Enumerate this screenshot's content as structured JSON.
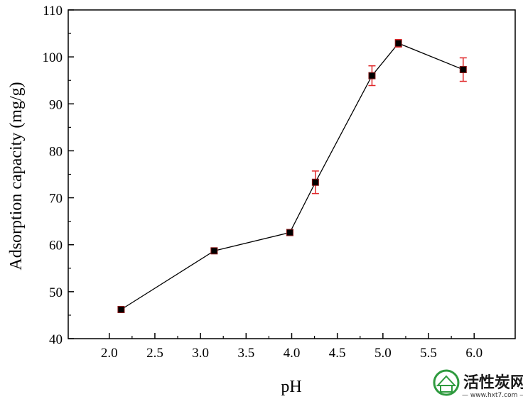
{
  "chart_data": {
    "type": "scatter",
    "xlabel": "pH",
    "ylabel": "Adsorption capacity (mg/g)",
    "xlim": [
      1.55,
      6.45
    ],
    "ylim": [
      40,
      110
    ],
    "x_ticks": [
      2.0,
      2.5,
      3.0,
      3.5,
      4.0,
      4.5,
      5.0,
      5.5,
      6.0
    ],
    "x_tick_labels": [
      "2.0",
      "2.5",
      "3.0",
      "3.5",
      "4.0",
      "4.5",
      "5.0",
      "5.5",
      "6.0"
    ],
    "y_ticks": [
      40,
      50,
      60,
      70,
      80,
      90,
      100,
      110
    ],
    "y_tick_labels": [
      "40",
      "50",
      "60",
      "70",
      "80",
      "90",
      "100",
      "110"
    ],
    "grid": false,
    "series": [
      {
        "x": [
          2.13,
          3.15,
          3.98,
          4.26,
          4.88,
          5.17,
          5.88
        ],
        "y": [
          46.2,
          58.7,
          62.6,
          73.3,
          96.0,
          102.9,
          97.3
        ],
        "error": [
          0.5,
          0.5,
          0.6,
          2.4,
          2.1,
          0.8,
          2.5
        ],
        "marker_color": "#000000",
        "line_color": "#000000",
        "error_color": "#e0282a",
        "marker_fill": "#8b1a1a"
      }
    ]
  },
  "watermark": {
    "text": "活性炭网",
    "url": "— www.hxt7.com —",
    "logo_color": "#2e9a3e"
  }
}
